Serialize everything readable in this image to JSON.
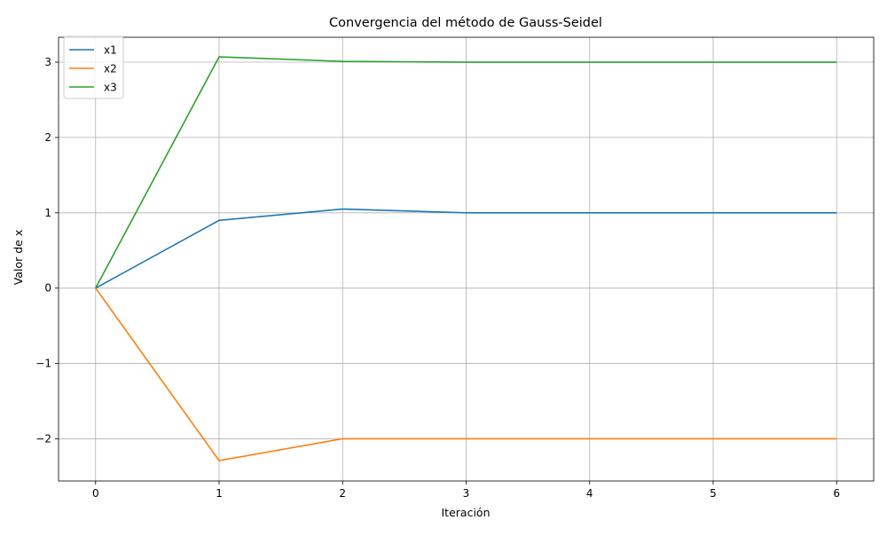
{
  "chart_data": {
    "type": "line",
    "title": "Convergencia del método de Gauss-Seidel",
    "xlabel": "Iteración",
    "ylabel": "Valor de x",
    "x": [
      0,
      1,
      2,
      3,
      4,
      5,
      6
    ],
    "xlim": [
      -0.3,
      6.3
    ],
    "ylim": [
      -2.56,
      3.33
    ],
    "xticks": [
      0,
      1,
      2,
      3,
      4,
      5,
      6
    ],
    "xtick_labels": [
      "0",
      "1",
      "2",
      "3",
      "4",
      "5",
      "6"
    ],
    "yticks": [
      -2,
      -1,
      0,
      1,
      2,
      3
    ],
    "ytick_labels": [
      "−2",
      "−1",
      "0",
      "1",
      "2",
      "3"
    ],
    "grid": true,
    "legend_position": "top-left",
    "series": [
      {
        "name": "x1",
        "color": "#1f77b4",
        "values": [
          0,
          0.9,
          1.05,
          1.0,
          1.0,
          1.0,
          1.0
        ]
      },
      {
        "name": "x2",
        "color": "#ff7f0e",
        "values": [
          0,
          -2.29,
          -2.0,
          -2.0,
          -2.0,
          -2.0,
          -2.0
        ]
      },
      {
        "name": "x3",
        "color": "#2ca02c",
        "values": [
          0,
          3.07,
          3.01,
          3.0,
          3.0,
          3.0,
          3.0
        ]
      }
    ]
  }
}
